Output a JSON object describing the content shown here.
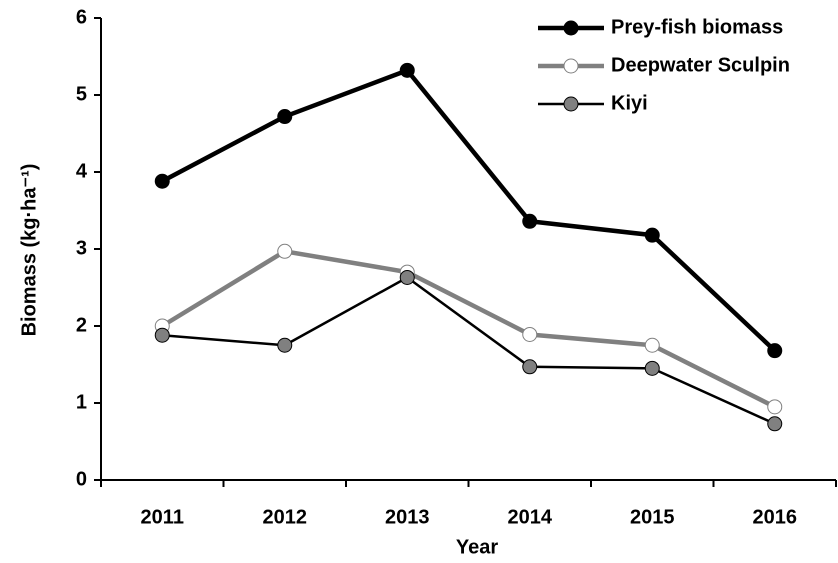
{
  "chart_data": {
    "type": "line",
    "x_label": "Year",
    "y_label": "Biomass (kg·ha⁻¹)",
    "categories": [
      "2011",
      "2012",
      "2013",
      "2014",
      "2015",
      "2016"
    ],
    "series": [
      {
        "name": "Prey-fish biomass",
        "color": "#000000",
        "marker_color": "#000000",
        "values": [
          3.88,
          4.72,
          5.32,
          3.36,
          3.18,
          1.68
        ]
      },
      {
        "name": "Deepwater Sculpin",
        "color": "#808080",
        "marker_color": "#ffffff",
        "values": [
          2.0,
          2.97,
          2.7,
          1.89,
          1.75,
          0.95
        ]
      },
      {
        "name": "Kiyi",
        "color": "#000000",
        "marker_color": "#808080",
        "values": [
          1.88,
          1.75,
          2.63,
          1.47,
          1.45,
          0.73
        ]
      }
    ],
    "ylim": [
      0,
      6
    ],
    "yticks": [
      0,
      1,
      2,
      3,
      4,
      5,
      6
    ],
    "grid": false,
    "legend": "top-right"
  }
}
